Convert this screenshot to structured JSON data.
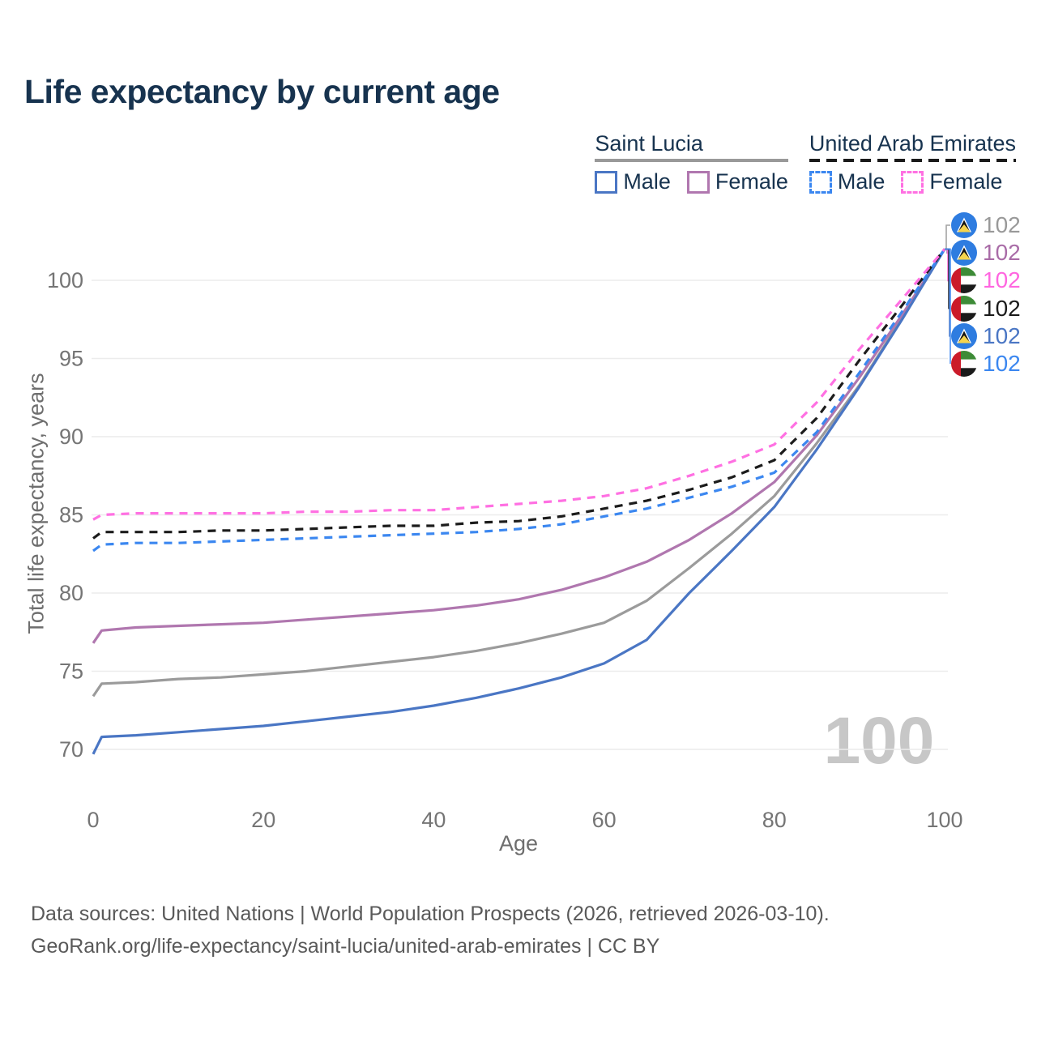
{
  "title": "Life expectancy by current age",
  "legend": {
    "groups": [
      {
        "country": "Saint Lucia",
        "line_style": "solid",
        "line_color": "#999999",
        "items": [
          {
            "label": "Male",
            "color": "#4a76c4",
            "dashed": false
          },
          {
            "label": "Female",
            "color": "#b077af",
            "dashed": false
          }
        ]
      },
      {
        "country": "United Arab Emirates",
        "line_style": "dashed",
        "line_color": "#1a1a1a",
        "items": [
          {
            "label": "Male",
            "color": "#3b87f0",
            "dashed": true
          },
          {
            "label": "Female",
            "color": "#ff70e2",
            "dashed": true
          }
        ]
      }
    ]
  },
  "chart_data": {
    "type": "line",
    "title": "Life expectancy by current age",
    "xlabel": "Age",
    "ylabel": "Total life expectancy, years",
    "xticks": [
      0,
      20,
      40,
      60,
      80,
      100
    ],
    "yticks": [
      70,
      75,
      80,
      85,
      90,
      95,
      100
    ],
    "xlim": [
      0,
      100
    ],
    "ylim": [
      68.5,
      103
    ],
    "grid": true,
    "legend_position": "top-right",
    "x": [
      0,
      1,
      5,
      10,
      15,
      20,
      25,
      30,
      35,
      40,
      45,
      50,
      55,
      60,
      65,
      70,
      75,
      80,
      85,
      90,
      95,
      100
    ],
    "series": [
      {
        "name": "Saint Lucia (both sexes)",
        "country": "Saint Lucia",
        "color": "#9b9b9b",
        "dashed": false,
        "values": [
          73.4,
          74.2,
          74.3,
          74.5,
          74.6,
          74.8,
          75.0,
          75.3,
          75.6,
          75.9,
          76.3,
          76.8,
          77.4,
          78.1,
          79.5,
          81.6,
          83.8,
          86.2,
          89.6,
          93.3,
          97.6,
          102
        ]
      },
      {
        "name": "Saint Lucia Female",
        "country": "Saint Lucia",
        "color": "#b077af",
        "dashed": false,
        "values": [
          76.8,
          77.6,
          77.8,
          77.9,
          78.0,
          78.1,
          78.3,
          78.5,
          78.7,
          78.9,
          79.2,
          79.6,
          80.2,
          81.0,
          82.0,
          83.4,
          85.1,
          87.1,
          90.1,
          93.8,
          97.8,
          102
        ]
      },
      {
        "name": "Saint Lucia Male",
        "country": "Saint Lucia",
        "color": "#4a76c4",
        "dashed": false,
        "values": [
          69.7,
          70.8,
          70.9,
          71.1,
          71.3,
          71.5,
          71.8,
          72.1,
          72.4,
          72.8,
          73.3,
          73.9,
          74.6,
          75.5,
          77.0,
          80.0,
          82.7,
          85.5,
          89.2,
          93.2,
          97.5,
          102
        ]
      },
      {
        "name": "United Arab Emirates Male",
        "country": "United Arab Emirates",
        "color": "#3b87f0",
        "dashed": true,
        "values": [
          82.7,
          83.1,
          83.2,
          83.2,
          83.3,
          83.4,
          83.5,
          83.6,
          83.7,
          83.8,
          83.9,
          84.1,
          84.4,
          84.9,
          85.4,
          86.1,
          86.8,
          87.7,
          90.3,
          94.1,
          98.0,
          102
        ]
      },
      {
        "name": "United Arab Emirates (both sexes)",
        "country": "United Arab Emirates",
        "color": "#1c1c1c",
        "dashed": true,
        "values": [
          83.5,
          83.9,
          83.9,
          83.9,
          84.0,
          84.0,
          84.1,
          84.2,
          84.3,
          84.3,
          84.5,
          84.6,
          84.9,
          85.4,
          85.9,
          86.6,
          87.4,
          88.5,
          91.2,
          94.9,
          98.4,
          102
        ]
      },
      {
        "name": "United Arab Emirates Female",
        "country": "United Arab Emirates",
        "color": "#ff70e2",
        "dashed": true,
        "values": [
          84.7,
          85.0,
          85.1,
          85.1,
          85.1,
          85.1,
          85.2,
          85.2,
          85.3,
          85.3,
          85.5,
          85.7,
          85.9,
          86.2,
          86.7,
          87.5,
          88.4,
          89.5,
          92.2,
          95.6,
          98.8,
          102
        ]
      }
    ]
  },
  "end_labels": [
    {
      "value": "102",
      "flag": "saint-lucia",
      "color": "#999999",
      "series": "Saint Lucia (both sexes)"
    },
    {
      "value": "102",
      "flag": "saint-lucia",
      "color": "#a96ca7",
      "series": "Saint Lucia Female"
    },
    {
      "value": "102",
      "flag": "united-arab-emirates",
      "color": "#ff66e0",
      "series": "United Arab Emirates Female"
    },
    {
      "value": "102",
      "flag": "united-arab-emirates",
      "color": "#1b1b1b",
      "series": "United Arab Emirates (both sexes)"
    },
    {
      "value": "102",
      "flag": "saint-lucia",
      "color": "#4a76c4",
      "series": "Saint Lucia Male"
    },
    {
      "value": "102",
      "flag": "united-arab-emirates",
      "color": "#3b87f0",
      "series": "United Arab Emirates Male"
    }
  ],
  "hover": {
    "age_label": "100"
  },
  "footer": {
    "line1": "Data sources: United Nations | World Population Prospects (2026, retrieved 2026-03-10).",
    "line2": "GeoRank.org/life-expectancy/saint-lucia/united-arab-emirates | CC BY"
  }
}
